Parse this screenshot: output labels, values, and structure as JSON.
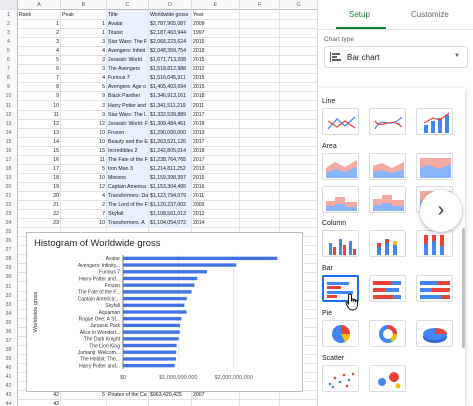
{
  "sheet": {
    "columns": [
      "A",
      "B",
      "C",
      "D",
      "E",
      "F",
      "G"
    ],
    "rows": [
      {
        "n": "1",
        "a": "Rank",
        "b": "Peak",
        "c": "Title",
        "d": "Worldwide gross",
        "e": "Year"
      },
      {
        "n": "2",
        "a": "1",
        "b": "1",
        "c": "Avatar",
        "d": "$2,787,965,087",
        "e": "2009"
      },
      {
        "n": "3",
        "a": "2",
        "b": "1",
        "c": "Titanic",
        "d": "$2,187,463,944",
        "e": "1997"
      },
      {
        "n": "4",
        "a": "3",
        "b": "3",
        "c": "Star Wars: The F",
        "d": "$2,068,223,624",
        "e": "2015"
      },
      {
        "n": "5",
        "a": "4",
        "b": "4",
        "c": "Avengers: Infinit",
        "d": "$2,048,359,754",
        "e": "2018"
      },
      {
        "n": "6",
        "a": "5",
        "b": "3",
        "c": "Jurassic World",
        "d": "$1,671,713,208",
        "e": "2015"
      },
      {
        "n": "7",
        "a": "6",
        "b": "3",
        "c": "The Avengers",
        "d": "$1,518,812,988",
        "e": "2012"
      },
      {
        "n": "8",
        "a": "7",
        "b": "4",
        "c": "Furious 7",
        "d": "$1,516,045,911",
        "e": "2015"
      },
      {
        "n": "9",
        "a": "8",
        "b": "5",
        "c": "Avengers: Age o",
        "d": "$1,405,403,694",
        "e": "2015"
      },
      {
        "n": "10",
        "a": "9",
        "b": "9",
        "c": "Black Panther",
        "d": "$1,346,913,161",
        "e": "2018"
      },
      {
        "n": "11",
        "a": "10",
        "b": "3",
        "c": "Harry Potter and",
        "d": "$1,341,511,219",
        "e": "2011"
      },
      {
        "n": "12",
        "a": "11",
        "b": "9",
        "c": "Star Wars: The L",
        "d": "$1,332,539,889",
        "e": "2017"
      },
      {
        "n": "13",
        "a": "12",
        "b": "12",
        "c": "Jurassic World: F",
        "d": "$1,309,484,461",
        "e": "2018"
      },
      {
        "n": "14",
        "a": "13",
        "b": "10",
        "c": "Frozen",
        "d": "$1,290,000,000",
        "e": "2013"
      },
      {
        "n": "15",
        "a": "14",
        "b": "10",
        "c": "Beauty and the E",
        "d": "$1,263,521,126",
        "e": "2017"
      },
      {
        "n": "16",
        "a": "15",
        "b": "15",
        "c": "Incredibles 2",
        "d": "$1,242,805,014",
        "e": "2018"
      },
      {
        "n": "17",
        "a": "16",
        "b": "11",
        "c": "The Fate of the F",
        "d": "$1,238,764,765",
        "e": "2017"
      },
      {
        "n": "18",
        "a": "17",
        "b": "5",
        "c": "Iron Man 3",
        "d": "$1,214,811,252",
        "e": "2013"
      },
      {
        "n": "19",
        "a": "18",
        "b": "10",
        "c": "Minions",
        "d": "$1,159,398,397",
        "e": "2015"
      },
      {
        "n": "20",
        "a": "19",
        "b": "12",
        "c": "Captain America",
        "d": "$1,153,304,495",
        "e": "2016"
      },
      {
        "n": "21",
        "a": "20",
        "b": "4",
        "c": "Transformers: Da",
        "d": "$1,123,794,079",
        "e": "2011"
      },
      {
        "n": "22",
        "a": "21",
        "b": "2",
        "c": "The Lord of the F",
        "d": "$1,120,237,002",
        "e": "2003"
      },
      {
        "n": "23",
        "a": "22",
        "b": "7",
        "c": "Skyfall",
        "d": "$1,108,561,013",
        "e": "2012"
      },
      {
        "n": "24",
        "a": "23",
        "b": "10",
        "c": "Transformers: A",
        "d": "$1,104,054,072",
        "e": "2014"
      },
      {
        "n": "25",
        "a": "",
        "b": "",
        "c": "",
        "d": "",
        "e": ""
      },
      {
        "n": "26",
        "a": "",
        "b": "",
        "c": "",
        "d": "",
        "e": ""
      },
      {
        "n": "27",
        "a": "",
        "b": "",
        "c": "",
        "d": "",
        "e": ""
      },
      {
        "n": "28",
        "a": "",
        "b": "",
        "c": "",
        "d": "",
        "e": ""
      },
      {
        "n": "29",
        "a": "",
        "b": "",
        "c": "",
        "d": "",
        "e": ""
      },
      {
        "n": "30",
        "a": "",
        "b": "",
        "c": "",
        "d": "",
        "e": ""
      },
      {
        "n": "31",
        "a": "",
        "b": "",
        "c": "",
        "d": "",
        "e": ""
      },
      {
        "n": "32",
        "a": "",
        "b": "",
        "c": "",
        "d": "",
        "e": ""
      },
      {
        "n": "33",
        "a": "",
        "b": "",
        "c": "",
        "d": "",
        "e": ""
      },
      {
        "n": "34",
        "a": "",
        "b": "",
        "c": "",
        "d": "",
        "e": ""
      },
      {
        "n": "35",
        "a": "",
        "b": "",
        "c": "",
        "d": "",
        "e": ""
      },
      {
        "n": "36",
        "a": "",
        "b": "",
        "c": "",
        "d": "",
        "e": ""
      },
      {
        "n": "37",
        "a": "",
        "b": "",
        "c": "",
        "d": "",
        "e": ""
      },
      {
        "n": "38",
        "a": "",
        "b": "",
        "c": "",
        "d": "",
        "e": ""
      },
      {
        "n": "39",
        "a": "",
        "b": "",
        "c": "",
        "d": "",
        "e": ""
      },
      {
        "n": "40",
        "a": "",
        "b": "",
        "c": "",
        "d": "",
        "e": ""
      },
      {
        "n": "41",
        "a": "",
        "b": "",
        "c": "",
        "d": "",
        "e": ""
      },
      {
        "n": "42",
        "a": "41",
        "b": "",
        "c": "",
        "d": "",
        "e": ""
      },
      {
        "n": "43",
        "a": "42",
        "b": "5",
        "c": "Pirates of the Ca",
        "d": "$963,420,425",
        "e": "2007"
      },
      {
        "n": "44",
        "a": "43",
        "b": "",
        "c": "",
        "d": "",
        "e": ""
      }
    ]
  },
  "chart_data": {
    "type": "bar",
    "title": "Histogram of Worldwide gross",
    "ylabel": "Worldwide gross",
    "xlim": [
      0,
      3000000000
    ],
    "x_ticks": [
      "$0",
      "$1,000,000,000",
      "$2,000,000,000"
    ],
    "x_tick_values": [
      0,
      1000000000,
      2000000000
    ],
    "bar_color": "#4472e3",
    "categories": [
      "Avatar",
      "Avengers: Infinity...",
      "Furious 7",
      "Harry Potter and...",
      "Frozen",
      "The Fate of the F...",
      "Captain America:...",
      "Skyfall",
      "Aquaman",
      "Rogue One: A St...",
      "Jurassic Park",
      "Alice in Wonderl...",
      "The Dark Knight",
      "The Lion King",
      "Jumanji: Welcom...",
      "The Hobbit: The...",
      "Harry Potter and..."
    ],
    "values": [
      2787965087,
      2048359754,
      1516045911,
      1341511219,
      1290000000,
      1238764765,
      1153304495,
      1108561013,
      1148161807,
      1056057273,
      1029939903,
      1025467110,
      1004558444,
      968483777,
      962102237,
      958366855,
      934416487
    ]
  },
  "panel": {
    "tab_setup": "Setup",
    "tab_customize": "Customize",
    "chart_type_label": "Chart type",
    "chart_type_value": "Bar chart",
    "groups": {
      "line": "Line",
      "area": "Area",
      "column": "Column",
      "bar": "Bar",
      "pie": "Pie",
      "scatter": "Scatter"
    }
  },
  "colors": {
    "accent_green": "#188038",
    "selection_blue": "#1a73e8",
    "thumb_blue": "#4285f4",
    "thumb_red": "#ea4335",
    "thumb_yellow": "#fbbc04"
  }
}
